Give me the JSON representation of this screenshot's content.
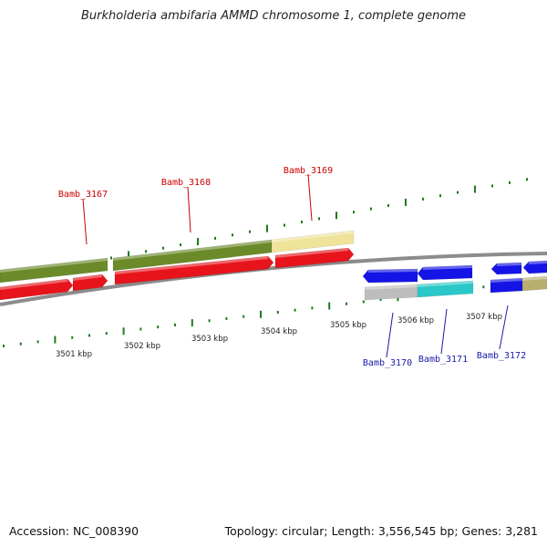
{
  "title": "Burkholderia ambifaria AMMD chromosome 1, complete genome",
  "footer": {
    "accession": "Accession: NC_008390",
    "summary": "Topology: circular; Length: 3,556,545 bp; Genes: 3,281"
  },
  "scale_labels": [
    "3501 kbp",
    "3502 kbp",
    "3503 kbp",
    "3504 kbp",
    "3505 kbp",
    "3506 kbp",
    "3507 kbp"
  ],
  "gene_labels": [
    {
      "text": "Bamb_3167",
      "strand": "plus"
    },
    {
      "text": "Bamb_3168",
      "strand": "plus"
    },
    {
      "text": "Bamb_3169",
      "strand": "plus"
    },
    {
      "text": "Bamb_3170",
      "strand": "minus"
    },
    {
      "text": "Bamb_3171",
      "strand": "minus"
    },
    {
      "text": "Bamb_3172",
      "strand": "minus"
    }
  ],
  "colors": {
    "plus_label": "#cc0000",
    "minus_label": "#1a1aaa",
    "backbone": "#8c8c8c",
    "cds_red": "#e8141c",
    "cds_blue": "#1414e6",
    "gene_olive": "#6b8a2a",
    "gene_khaki": "#efe39a",
    "gene_gray": "#bdbdbd",
    "gene_cyan": "#2ac8c8",
    "gene_tan": "#b8ae70",
    "tick": "#1f7a1f"
  }
}
